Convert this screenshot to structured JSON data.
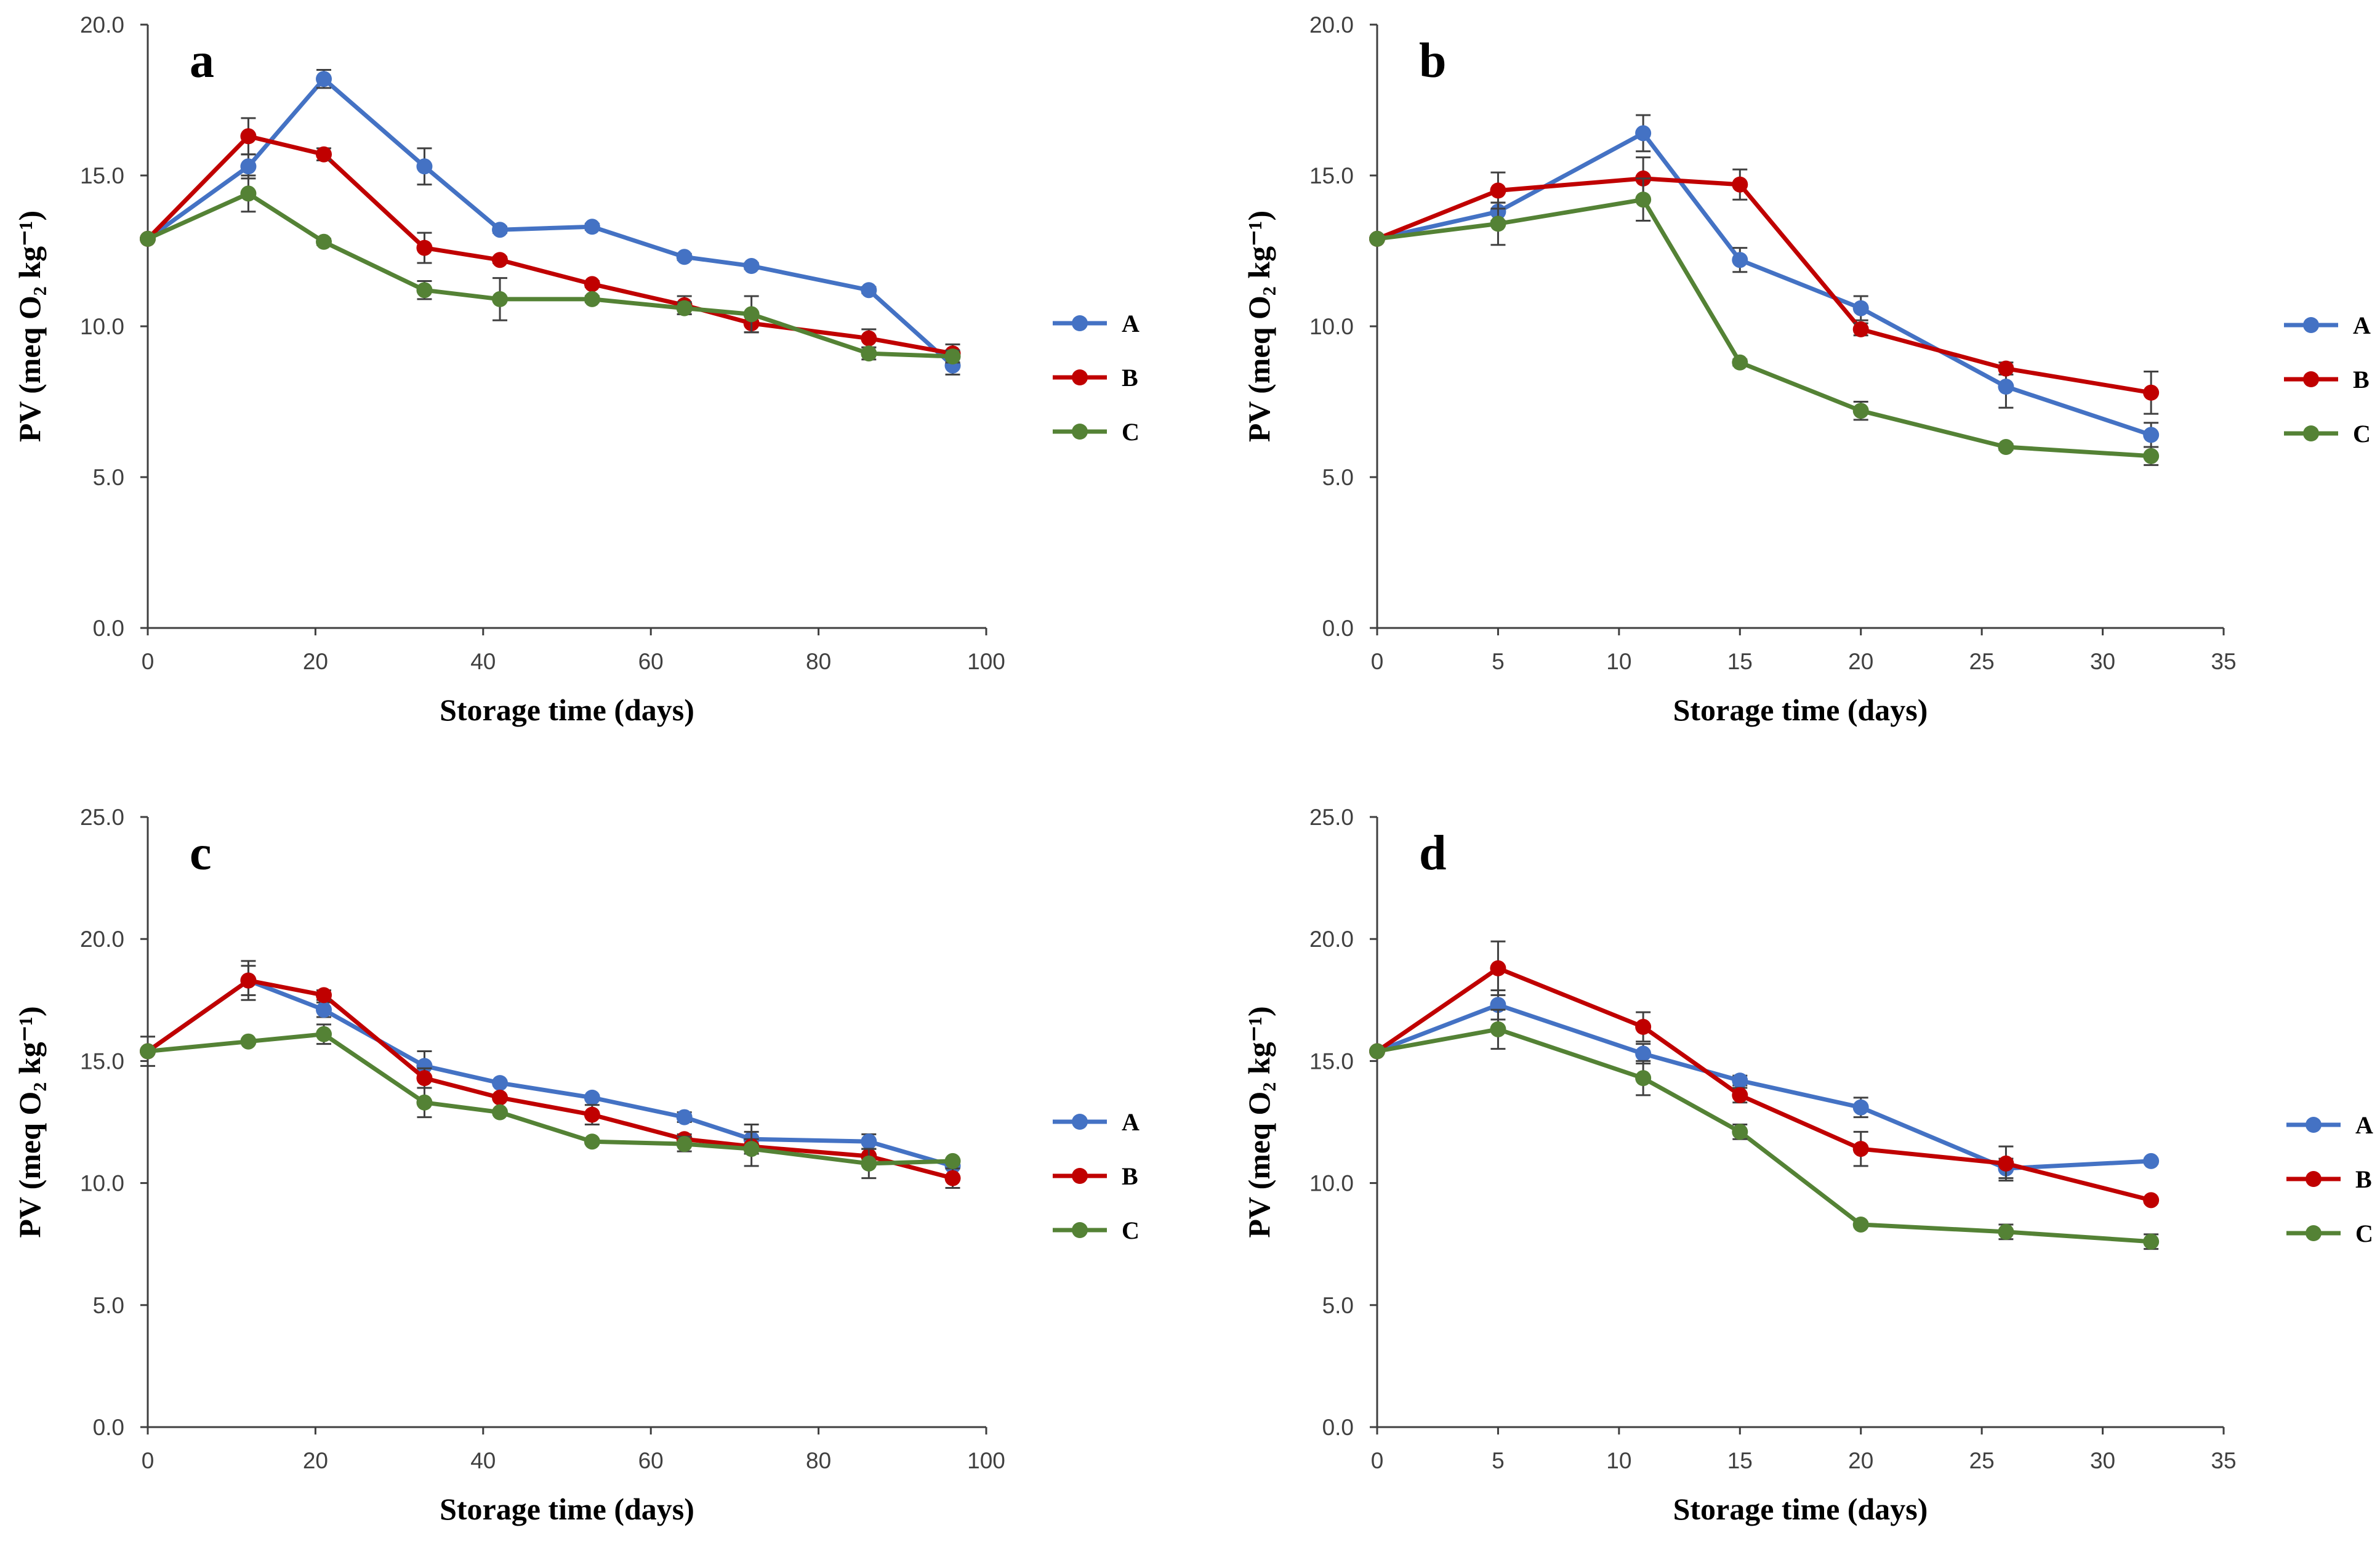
{
  "colors": {
    "A": "#4472C4",
    "B": "#C00000",
    "C": "#548235"
  },
  "chart_data": [
    {
      "panel": "a",
      "type": "line",
      "xlabel": "Storage time (days)",
      "ylabel": "PV (meq O₂ kg⁻¹)",
      "xlim": [
        0,
        100
      ],
      "ylim": [
        0,
        20
      ],
      "xticks": [
        0,
        20,
        40,
        60,
        80,
        100
      ],
      "yticks": [
        0,
        5,
        10,
        15,
        20
      ],
      "xtick_labels": [
        "0",
        "20",
        "40",
        "60",
        "80",
        "100"
      ],
      "ytick_labels": [
        "0.0",
        "5.0",
        "10.0",
        "15.0",
        "20.0"
      ],
      "legend": "right",
      "series": [
        {
          "name": "A",
          "x": [
            0,
            12,
            21,
            33,
            42,
            53,
            64,
            72,
            86,
            96
          ],
          "values": [
            12.9,
            15.3,
            18.2,
            15.3,
            13.2,
            13.3,
            12.3,
            12.0,
            11.2,
            8.7
          ],
          "err": [
            0,
            0.4,
            0.3,
            0.6,
            0.1,
            0.1,
            0.1,
            0.1,
            0.1,
            0.3
          ]
        },
        {
          "name": "B",
          "x": [
            0,
            12,
            21,
            33,
            42,
            53,
            64,
            72,
            86,
            96
          ],
          "values": [
            12.9,
            16.3,
            15.7,
            12.6,
            12.2,
            11.4,
            10.7,
            10.1,
            9.6,
            9.1
          ],
          "err": [
            0,
            0.6,
            0.2,
            0.5,
            0.1,
            0.1,
            0.3,
            0.3,
            0.3,
            0.3
          ]
        },
        {
          "name": "C",
          "x": [
            0,
            12,
            21,
            33,
            42,
            53,
            64,
            72,
            86,
            96
          ],
          "values": [
            12.9,
            14.4,
            12.8,
            11.2,
            10.9,
            10.9,
            10.6,
            10.4,
            9.1,
            9.0
          ],
          "err": [
            0,
            0.6,
            0.1,
            0.3,
            0.7,
            0.1,
            0.2,
            0.6,
            0.2,
            0.2
          ]
        }
      ]
    },
    {
      "panel": "b",
      "type": "line",
      "xlabel": "Storage time (days)",
      "ylabel": "PV (meq O₂ kg⁻¹)",
      "xlim": [
        0,
        35
      ],
      "ylim": [
        0,
        20
      ],
      "xticks": [
        0,
        5,
        10,
        15,
        20,
        25,
        30,
        35
      ],
      "yticks": [
        0,
        5,
        10,
        15,
        20
      ],
      "xtick_labels": [
        "0",
        "5",
        "10",
        "15",
        "20",
        "25",
        "30",
        "35"
      ],
      "ytick_labels": [
        "0.0",
        "5.0",
        "10.0",
        "15.0",
        "20.0"
      ],
      "legend": "right",
      "series": [
        {
          "name": "A",
          "x": [
            0,
            5,
            11,
            15,
            20,
            26,
            32
          ],
          "values": [
            12.9,
            13.8,
            16.4,
            12.2,
            10.6,
            8.0,
            6.4
          ],
          "err": [
            0,
            0.3,
            0.6,
            0.4,
            0.4,
            0.7,
            0.4
          ]
        },
        {
          "name": "B",
          "x": [
            0,
            5,
            11,
            15,
            20,
            26,
            32
          ],
          "values": [
            12.9,
            14.5,
            14.9,
            14.7,
            9.9,
            8.6,
            7.8
          ],
          "err": [
            0,
            0.6,
            0.7,
            0.5,
            0.2,
            0.2,
            0.7
          ]
        },
        {
          "name": "C",
          "x": [
            0,
            5,
            11,
            15,
            20,
            26,
            32
          ],
          "values": [
            12.9,
            13.4,
            14.2,
            8.8,
            7.2,
            6.0,
            5.7
          ],
          "err": [
            0,
            0.7,
            0.7,
            0.1,
            0.3,
            0.1,
            0.3
          ]
        }
      ]
    },
    {
      "panel": "c",
      "type": "line",
      "xlabel": "Storage time (days)",
      "ylabel": "PV (meq O₂ kg⁻¹)",
      "xlim": [
        0,
        100
      ],
      "ylim": [
        0,
        25
      ],
      "xticks": [
        0,
        20,
        40,
        60,
        80,
        100
      ],
      "yticks": [
        0,
        5,
        10,
        15,
        20,
        25
      ],
      "xtick_labels": [
        "0",
        "20",
        "40",
        "60",
        "80",
        "100"
      ],
      "ytick_labels": [
        "0.0",
        "5.0",
        "10.0",
        "15.0",
        "20.0",
        "25.0"
      ],
      "legend": "right",
      "series": [
        {
          "name": "A",
          "x": [
            0,
            12,
            21,
            33,
            42,
            53,
            64,
            72,
            86,
            96
          ],
          "values": [
            15.4,
            18.3,
            17.1,
            14.8,
            14.1,
            13.5,
            12.7,
            11.8,
            11.7,
            10.7
          ],
          "err": [
            0,
            0.6,
            0.3,
            0.6,
            0.1,
            0.1,
            0.2,
            0.6,
            0.3,
            0.1
          ]
        },
        {
          "name": "B",
          "x": [
            0,
            12,
            21,
            33,
            42,
            53,
            64,
            72,
            86,
            96
          ],
          "values": [
            15.4,
            18.3,
            17.7,
            14.3,
            13.5,
            12.8,
            11.8,
            11.5,
            11.1,
            10.2
          ],
          "err": [
            0,
            0.8,
            0.2,
            0.4,
            0.1,
            0.4,
            0.2,
            0.3,
            0.3,
            0.4
          ]
        },
        {
          "name": "C",
          "x": [
            0,
            12,
            21,
            33,
            42,
            53,
            64,
            72,
            86,
            96
          ],
          "values": [
            15.4,
            15.8,
            16.1,
            13.3,
            12.9,
            11.7,
            11.6,
            11.4,
            10.8,
            10.9
          ],
          "err": [
            0.6,
            0.1,
            0.4,
            0.6,
            0.1,
            0.1,
            0.3,
            0.7,
            0.6,
            0.1
          ]
        }
      ]
    },
    {
      "panel": "d",
      "type": "line",
      "xlabel": "Storage time (days)",
      "ylabel": "PV (meq O₂ kg⁻¹)",
      "xlim": [
        0,
        35
      ],
      "ylim": [
        0,
        25
      ],
      "xticks": [
        0,
        5,
        10,
        15,
        20,
        25,
        30,
        35
      ],
      "yticks": [
        0,
        5,
        10,
        15,
        20,
        25
      ],
      "xtick_labels": [
        "0",
        "5",
        "10",
        "15",
        "20",
        "25",
        "30",
        "35"
      ],
      "ytick_labels": [
        "0.0",
        "5.0",
        "10.0",
        "15.0",
        "20.0",
        "25.0"
      ],
      "legend": "right",
      "series": [
        {
          "name": "A",
          "x": [
            0,
            5,
            11,
            15,
            20,
            26,
            32
          ],
          "values": [
            15.4,
            17.3,
            15.3,
            14.2,
            13.1,
            10.6,
            10.9
          ],
          "err": [
            0,
            0.6,
            0.4,
            0.2,
            0.4,
            0.4,
            0.1
          ]
        },
        {
          "name": "B",
          "x": [
            0,
            5,
            11,
            15,
            20,
            26,
            32
          ],
          "values": [
            15.4,
            18.8,
            16.4,
            13.6,
            11.4,
            10.8,
            9.3
          ],
          "err": [
            0,
            1.1,
            0.6,
            0.3,
            0.7,
            0.7,
            0.1
          ]
        },
        {
          "name": "C",
          "x": [
            0,
            5,
            11,
            15,
            20,
            26,
            32
          ],
          "values": [
            15.4,
            16.3,
            14.3,
            12.1,
            8.3,
            8.0,
            7.6
          ],
          "err": [
            0,
            0.8,
            0.7,
            0.3,
            0.1,
            0.3,
            0.3
          ]
        }
      ]
    }
  ]
}
